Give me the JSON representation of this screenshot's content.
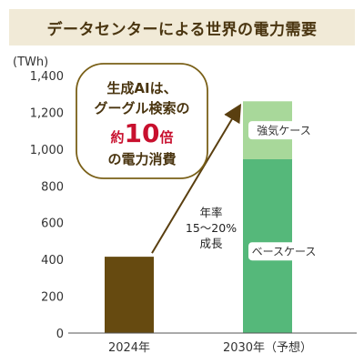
{
  "title": "データセンターによる世界の電力需要",
  "callout": {
    "line1": "生成AIは、",
    "line2": "グーグル検索の",
    "line3_prefix": "約",
    "line3_number": "10",
    "line3_suffix": "倍",
    "line4": "の電力消費"
  },
  "growth_annotation": {
    "line1": "年率",
    "line2": "15～20%",
    "line3": "成長"
  },
  "colors": {
    "bar_2024": "#664a10",
    "base_case": "#55b87a",
    "strong_case": "#a8d89a",
    "title_bg": "#f1ead7",
    "title_text": "#4a3510",
    "callout_accent": "#c8102e",
    "arrow": "#5a3f10"
  },
  "chart_data": {
    "type": "bar",
    "stacked": true,
    "ylabel": "(TWh)",
    "xlabel": "",
    "ylim": [
      0,
      1400
    ],
    "yticks": [
      0,
      200,
      400,
      600,
      800,
      1000,
      1200,
      1400
    ],
    "grid": false,
    "categories": [
      "2024年",
      "2030年（予想）"
    ],
    "series": [
      {
        "name": "ベースケース",
        "values": [
          415,
          945
        ]
      },
      {
        "name": "強気ケース",
        "values": [
          0,
          315
        ]
      }
    ]
  }
}
